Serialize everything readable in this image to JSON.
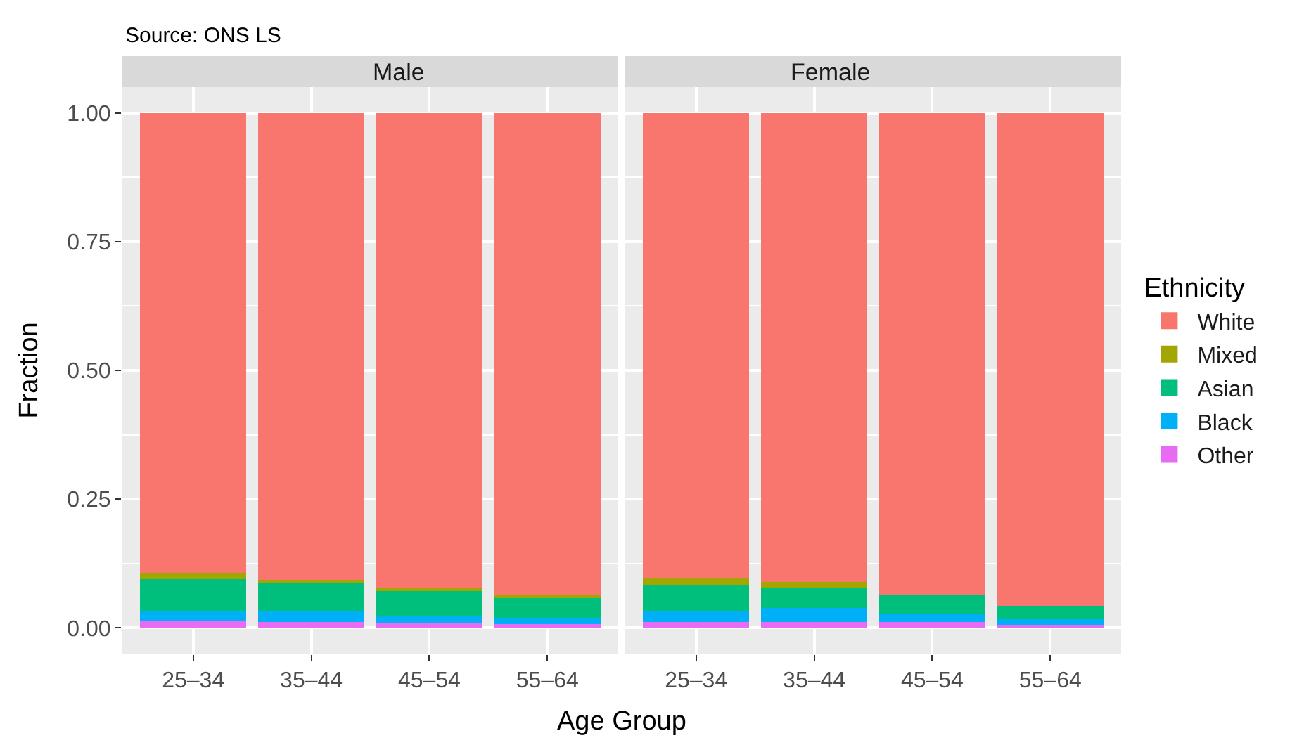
{
  "chart_data": [
    {
      "type": "bar",
      "title": "Male",
      "xlabel": "Age Group",
      "ylabel": "Fraction",
      "annotations": [
        "Source: ONS LS"
      ],
      "legend_title": "Ethnicity",
      "legend": "right",
      "stacked": true,
      "grid": true,
      "categories": [
        "25–34",
        "35–44",
        "45–54",
        "55–64"
      ],
      "ylim": [
        -0.05,
        1.05
      ],
      "yticks": [
        {
          "value": 0,
          "label": "0.00"
        },
        {
          "value": 0.25,
          "label": "0.25"
        },
        {
          "value": 0.5,
          "label": "0.50"
        },
        {
          "value": 0.75,
          "label": "0.75"
        },
        {
          "value": 1,
          "label": "1.00"
        }
      ],
      "series": [
        {
          "name": "Other",
          "color": "#e76bf3",
          "values": [
            0.014,
            0.011,
            0.009,
            0.008
          ]
        },
        {
          "name": "Black",
          "color": "#00b0f6",
          "values": [
            0.019,
            0.022,
            0.013,
            0.011
          ]
        },
        {
          "name": "Asian",
          "color": "#00bf7d",
          "values": [
            0.061,
            0.053,
            0.05,
            0.039
          ]
        },
        {
          "name": "Mixed",
          "color": "#a3a500",
          "values": [
            0.011,
            0.007,
            0.006,
            0.006
          ]
        },
        {
          "name": "White",
          "color": "#f8766d",
          "values": [
            0.895,
            0.907,
            0.922,
            0.936
          ]
        }
      ]
    },
    {
      "type": "bar",
      "title": "Female",
      "stacked": true,
      "grid": true,
      "tick_labels": "x",
      "categories": [
        "25–34",
        "35–44",
        "45–54",
        "55–64"
      ],
      "ylim": [
        -0.05,
        1.05
      ],
      "yticks": [
        0,
        0.25,
        0.5,
        0.75,
        1
      ],
      "series": [
        {
          "color": "#e76bf3",
          "values": [
            0.011,
            0.011,
            0.011,
            0.006
          ]
        },
        {
          "color": "#00b0f6",
          "values": [
            0.022,
            0.028,
            0.015,
            0.011
          ]
        },
        {
          "color": "#00bf7d",
          "values": [
            0.05,
            0.039,
            0.039,
            0.026
          ]
        },
        {
          "color": "#a3a500",
          "values": [
            0.015,
            0.011,
            null,
            null
          ]
        },
        {
          "color": "#f8766d",
          "values": [
            0.902,
            0.911,
            0.934,
            0.956
          ]
        }
      ]
    }
  ]
}
